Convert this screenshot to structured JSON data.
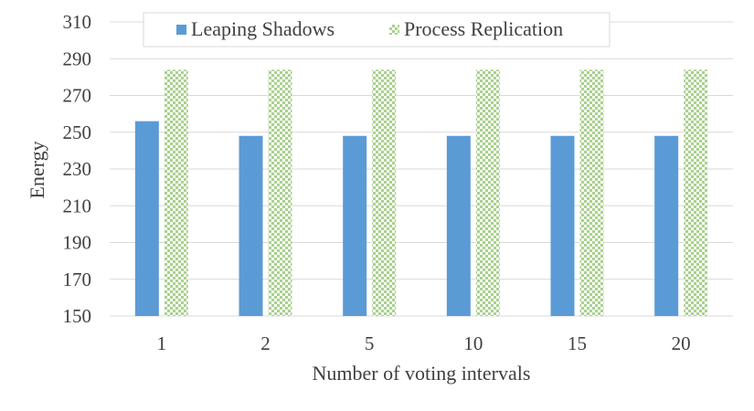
{
  "chart_data": {
    "type": "bar",
    "title": "",
    "xlabel": "Number of voting intervals",
    "ylabel": "Energy",
    "categories": [
      "1",
      "2",
      "5",
      "10",
      "15",
      "20"
    ],
    "ylim": [
      150,
      310
    ],
    "yticks": [
      150,
      170,
      190,
      210,
      230,
      250,
      270,
      290,
      310
    ],
    "grid": true,
    "legend_position": "top-center",
    "series": [
      {
        "name": "Leaping Shadows",
        "values": [
          256,
          248,
          248,
          248,
          248,
          248
        ],
        "color": "#5b9bd5",
        "pattern": "solid"
      },
      {
        "name": "Process Replication",
        "values": [
          284,
          284,
          284,
          284,
          284,
          284
        ],
        "color": "#a9d18e",
        "pattern": "checker"
      }
    ]
  }
}
